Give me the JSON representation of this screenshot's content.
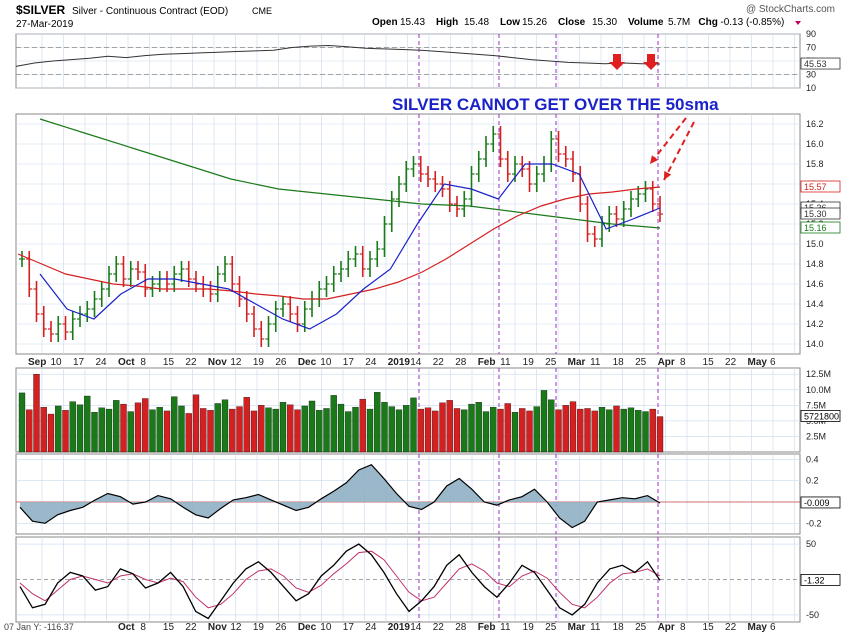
{
  "header": {
    "symbol": "$SILVER",
    "desc": "Silver - Continuous Contract (EOD)",
    "exchange": "CME",
    "date": "27-Mar-2019",
    "watermark": "@ StockCharts.com",
    "quote": [
      {
        "label": "Open",
        "value": "15.43"
      },
      {
        "label": "High",
        "value": "15.48"
      },
      {
        "label": "Low",
        "value": "15.26"
      },
      {
        "label": "Close",
        "value": "15.30"
      },
      {
        "label": "Volume",
        "value": "5.7M"
      },
      {
        "label": "Chg",
        "value": "-0.13 (-0.85%)"
      }
    ],
    "dropdown_icon": "caret-down-icon"
  },
  "annotation": {
    "headline": "SILVER CANNOT GET OVER THE 50sma",
    "color": "#1a22c8"
  },
  "footer": {
    "cursor": "07 Jan Y: -116.37"
  },
  "colors": {
    "up": "#1a7a1a",
    "down": "#d42020",
    "ma50": "#d42020",
    "ma20": "#1a22c8",
    "ma200": "#1a7a1a",
    "event_line": "#9b30c8",
    "grid": "#c9d9ee"
  },
  "chart_data": [
    {
      "type": "line",
      "name": "rsi-panel",
      "ylim": [
        10,
        90
      ],
      "ticks": [
        "90",
        "70",
        "50",
        "30",
        "10"
      ],
      "tick_values": [
        90,
        70,
        50,
        30,
        10
      ],
      "last_label": "45.53",
      "levels": [
        70,
        30
      ],
      "series": [
        {
          "values": [
            42,
            47,
            50,
            52,
            54,
            57,
            55,
            58,
            60,
            61,
            62,
            63,
            64,
            65,
            66,
            70,
            72,
            73,
            71,
            69,
            68,
            67,
            66,
            64,
            62,
            60,
            58,
            55,
            52,
            50,
            48,
            47,
            46,
            47,
            46,
            45.5
          ]
        }
      ]
    },
    {
      "type": "bar",
      "name": "price-panel",
      "ylim": [
        13.9,
        16.3
      ],
      "ticks": [
        "16.2",
        "16.0",
        "15.8",
        "15.6",
        "15.4",
        "15.2",
        "15.0",
        "14.8",
        "14.6",
        "14.4",
        "14.2",
        "14.0"
      ],
      "tick_values": [
        16.2,
        16.0,
        15.8,
        15.6,
        15.4,
        15.2,
        15.0,
        14.8,
        14.6,
        14.4,
        14.2,
        14.0
      ],
      "right_labels": [
        {
          "text": "15.57",
          "value": 15.57,
          "color": "#d42020"
        },
        {
          "text": "15.36",
          "value": 15.36,
          "color": "#333333"
        },
        {
          "text": "15.30",
          "value": 15.3,
          "color": "#333333"
        },
        {
          "text": "15.16",
          "value": 15.16,
          "color": "#1a7a1a"
        }
      ],
      "x_labels": [
        "Sep",
        "10",
        "17",
        "24",
        "Oct",
        "8",
        "15",
        "22",
        "Nov",
        "12",
        "19",
        "26",
        "Dec",
        "10",
        "17",
        "24",
        "2019",
        "14",
        "22",
        "28",
        "Feb",
        "11",
        "19",
        "25",
        "Mar",
        "11",
        "18",
        "25",
        "Apr",
        "8",
        "15",
        "22",
        "May",
        "6"
      ],
      "ohlc_close": [
        14.85,
        14.55,
        14.3,
        14.15,
        14.1,
        14.2,
        14.12,
        14.25,
        14.3,
        14.35,
        14.45,
        14.55,
        14.7,
        14.8,
        14.65,
        14.75,
        14.72,
        14.55,
        14.6,
        14.65,
        14.6,
        14.7,
        14.75,
        14.65,
        14.6,
        14.55,
        14.5,
        14.7,
        14.8,
        14.6,
        14.45,
        14.3,
        14.15,
        14.05,
        14.2,
        14.35,
        14.4,
        14.3,
        14.2,
        14.35,
        14.45,
        14.55,
        14.6,
        14.7,
        14.75,
        14.85,
        14.9,
        14.75,
        14.85,
        14.95,
        15.2,
        15.45,
        15.6,
        15.75,
        15.8,
        15.7,
        15.65,
        15.6,
        15.55,
        15.4,
        15.35,
        15.45,
        15.7,
        15.85,
        16.0,
        16.1,
        15.85,
        15.7,
        15.8,
        15.75,
        15.6,
        15.7,
        15.8,
        16.05,
        15.9,
        15.85,
        15.7,
        15.4,
        15.1,
        15.05,
        15.2,
        15.3,
        15.25,
        15.35,
        15.45,
        15.5,
        15.55,
        15.4,
        15.3
      ],
      "ma50": [
        14.9,
        14.8,
        14.7,
        14.65,
        14.6,
        14.58,
        14.55,
        14.55,
        14.55,
        14.53,
        14.5,
        14.48,
        14.45,
        14.45,
        14.5,
        14.55,
        14.62,
        14.72,
        14.85,
        15.0,
        15.15,
        15.28,
        15.38,
        15.45,
        15.5,
        15.52,
        15.55,
        15.57
      ],
      "ma20": [
        14.7,
        14.35,
        14.25,
        14.5,
        14.65,
        14.65,
        14.6,
        14.55,
        14.4,
        14.25,
        14.15,
        14.3,
        14.55,
        14.75,
        15.2,
        15.6,
        15.55,
        15.45,
        15.8,
        15.8,
        15.7,
        15.15,
        15.25,
        15.36
      ],
      "ma200": [
        16.25,
        16.1,
        15.95,
        15.8,
        15.65,
        15.55,
        15.5,
        15.45,
        15.4,
        15.38,
        15.32,
        15.26,
        15.2,
        15.16
      ]
    },
    {
      "type": "bar",
      "name": "volume-panel",
      "ylim": [
        0,
        13500000
      ],
      "ticks": [
        "12.5M",
        "10.0M",
        "7.5M",
        "5.0M",
        "2.5M"
      ],
      "tick_values": [
        12500000,
        10000000,
        7500000,
        5000000,
        2500000
      ],
      "last_label": "5721800",
      "values": [
        9.5,
        6.8,
        12.5,
        7.2,
        6.1,
        7.4,
        6.7,
        8.1,
        7.6,
        9.0,
        6.4,
        7.1,
        6.9,
        8.3,
        7.7,
        6.5,
        7.9,
        8.6,
        6.8,
        7.2,
        6.6,
        8.9,
        7.4,
        6.2,
        9.2,
        7.0,
        6.7,
        7.8,
        8.4,
        6.9,
        7.3,
        8.8,
        6.6,
        7.5,
        7.1,
        6.9,
        8.0,
        7.6,
        6.8,
        7.4,
        8.2,
        6.7,
        7.0,
        9.1,
        7.7,
        6.5,
        7.2,
        8.5,
        6.9,
        9.6,
        8.0,
        7.3,
        6.8,
        7.5,
        8.7,
        6.9,
        7.1,
        6.6,
        7.9,
        8.3,
        7.0,
        6.8,
        7.7,
        8.0,
        6.5,
        7.2,
        6.9,
        7.8,
        6.4,
        7.0,
        6.6,
        7.3,
        9.9,
        8.4,
        6.8,
        7.5,
        8.1,
        6.9,
        7.0,
        6.6,
        7.2,
        6.8,
        7.4,
        6.9,
        7.1,
        6.7,
        6.5,
        6.9,
        5.7
      ]
    },
    {
      "type": "area",
      "name": "oscillator-panel",
      "ylim": [
        -0.3,
        0.45
      ],
      "ticks": [
        "0.4",
        "0.2",
        "-0.2"
      ],
      "tick_values": [
        0.4,
        0.2,
        -0.2
      ],
      "last_label": "-0.009",
      "values": [
        -0.05,
        -0.18,
        -0.2,
        -0.12,
        -0.08,
        -0.05,
        0.02,
        0.08,
        0.05,
        -0.02,
        0.0,
        0.06,
        0.03,
        -0.05,
        -0.12,
        -0.15,
        -0.06,
        0.02,
        0.04,
        0.07,
        0.02,
        -0.03,
        -0.08,
        -0.05,
        0.03,
        0.1,
        0.18,
        0.3,
        0.35,
        0.22,
        0.08,
        -0.04,
        -0.07,
        0.0,
        0.15,
        0.22,
        0.12,
        0.0,
        -0.03,
        0.02,
        0.05,
        0.12,
        0.0,
        -0.15,
        -0.24,
        -0.18,
        0.0,
        0.02,
        0.04,
        0.03,
        0.06,
        -0.009
      ]
    },
    {
      "type": "line",
      "name": "stochastic-panel",
      "ylim": [
        -60,
        60
      ],
      "ticks": [
        "50",
        "-50"
      ],
      "tick_values": [
        50,
        -50
      ],
      "last_label": "-1.32",
      "series": [
        {
          "values": [
            -10,
            -40,
            -35,
            -5,
            10,
            5,
            -15,
            -10,
            15,
            8,
            -12,
            -5,
            10,
            -10,
            -45,
            -55,
            -30,
            -5,
            15,
            25,
            10,
            -10,
            -30,
            -20,
            5,
            20,
            40,
            50,
            35,
            10,
            -20,
            -45,
            -30,
            -10,
            20,
            35,
            10,
            -10,
            -25,
            -5,
            20,
            10,
            -15,
            -40,
            -50,
            -35,
            -5,
            15,
            20,
            10,
            25,
            -1.32
          ]
        },
        {
          "values": [
            -5,
            -20,
            -30,
            -15,
            0,
            5,
            0,
            -5,
            5,
            8,
            0,
            -5,
            2,
            -3,
            -25,
            -40,
            -35,
            -20,
            0,
            12,
            15,
            5,
            -12,
            -18,
            -8,
            8,
            22,
            38,
            40,
            28,
            5,
            -18,
            -30,
            -25,
            -5,
            15,
            22,
            12,
            -5,
            -10,
            5,
            12,
            2,
            -18,
            -35,
            -40,
            -25,
            -5,
            8,
            10,
            15,
            5
          ]
        }
      ]
    }
  ]
}
